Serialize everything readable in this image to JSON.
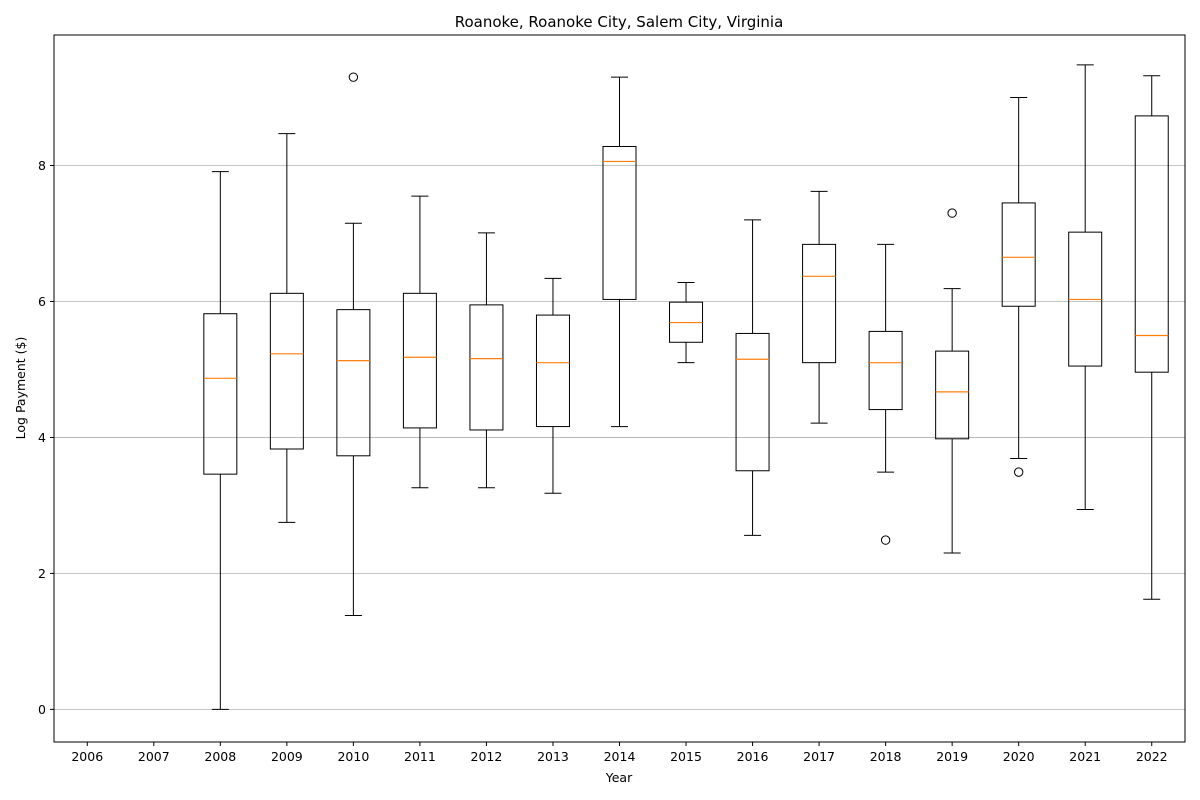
{
  "chart_data": {
    "type": "box",
    "title": "Roanoke, Roanoke City, Salem City, Virginia",
    "xlabel": "Year",
    "ylabel": "Log Payment ($)",
    "categories": [
      "2006",
      "2007",
      "2008",
      "2009",
      "2010",
      "2011",
      "2012",
      "2013",
      "2014",
      "2015",
      "2016",
      "2017",
      "2018",
      "2019",
      "2020",
      "2021",
      "2022"
    ],
    "yticks": [
      "0",
      "2",
      "4",
      "6",
      "8"
    ],
    "ylim": [
      -0.48,
      9.92
    ],
    "grid": "y",
    "colors": {
      "box": "#000000",
      "median": "#ff7f0e",
      "grid": "#b0b0b0"
    },
    "boxes": [
      null,
      null,
      {
        "whislo": 0.0,
        "q1": 3.46,
        "med": 4.87,
        "q3": 5.82,
        "whishi": 7.91,
        "fliers": []
      },
      {
        "whislo": 2.75,
        "q1": 3.83,
        "med": 5.23,
        "q3": 6.12,
        "whishi": 8.47,
        "fliers": []
      },
      {
        "whislo": 1.38,
        "q1": 3.73,
        "med": 5.13,
        "q3": 5.88,
        "whishi": 7.15,
        "fliers": [
          9.3
        ]
      },
      {
        "whislo": 3.26,
        "q1": 4.14,
        "med": 5.18,
        "q3": 6.12,
        "whishi": 7.55,
        "fliers": []
      },
      {
        "whislo": 3.26,
        "q1": 4.11,
        "med": 5.16,
        "q3": 5.95,
        "whishi": 7.01,
        "fliers": []
      },
      {
        "whislo": 3.18,
        "q1": 4.16,
        "med": 5.1,
        "q3": 5.8,
        "whishi": 6.34,
        "fliers": []
      },
      {
        "whislo": 4.16,
        "q1": 6.03,
        "med": 8.06,
        "q3": 8.28,
        "whishi": 9.3,
        "fliers": []
      },
      {
        "whislo": 5.1,
        "q1": 5.4,
        "med": 5.69,
        "q3": 5.99,
        "whishi": 6.28,
        "fliers": []
      },
      {
        "whislo": 2.56,
        "q1": 3.51,
        "med": 5.15,
        "q3": 5.53,
        "whishi": 7.2,
        "fliers": []
      },
      {
        "whislo": 4.21,
        "q1": 5.1,
        "med": 6.37,
        "q3": 6.84,
        "whishi": 7.62,
        "fliers": []
      },
      {
        "whislo": 3.49,
        "q1": 4.41,
        "med": 5.1,
        "q3": 5.56,
        "whishi": 6.84,
        "fliers": [
          2.49
        ]
      },
      {
        "whislo": 2.3,
        "q1": 3.98,
        "med": 4.67,
        "q3": 5.27,
        "whishi": 6.19,
        "fliers": [
          7.3
        ]
      },
      {
        "whislo": 3.69,
        "q1": 5.93,
        "med": 6.65,
        "q3": 7.45,
        "whishi": 9.0,
        "fliers": [
          3.49
        ]
      },
      {
        "whislo": 2.94,
        "q1": 5.05,
        "med": 6.03,
        "q3": 7.02,
        "whishi": 9.48,
        "fliers": []
      },
      {
        "whislo": 1.62,
        "q1": 4.96,
        "med": 5.5,
        "q3": 8.73,
        "whishi": 9.32,
        "fliers": []
      }
    ]
  }
}
